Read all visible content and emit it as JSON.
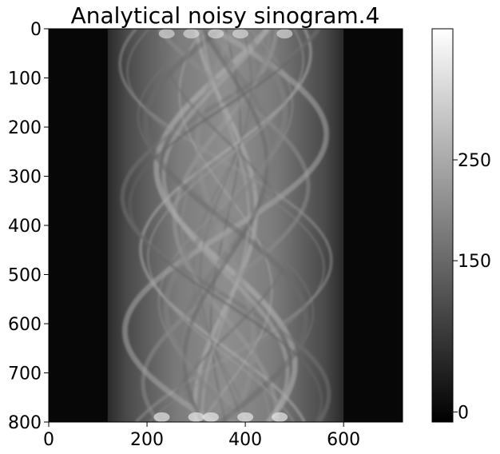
{
  "chart_data": {
    "type": "heatmap",
    "title": "Analytical noisy sinogram.4",
    "xlabel": "",
    "ylabel": "",
    "xlim": [
      0,
      720
    ],
    "ylim": [
      800,
      0
    ],
    "x_ticks": [
      0,
      200,
      400,
      600
    ],
    "y_ticks": [
      0,
      100,
      200,
      300,
      400,
      500,
      600,
      700,
      800
    ],
    "colormap": "gray",
    "colorbar": {
      "position": "right",
      "range": [
        -10,
        380
      ],
      "ticks": [
        0,
        150,
        250
      ]
    },
    "grid": false,
    "object_column_extent": [
      120,
      600
    ]
  }
}
